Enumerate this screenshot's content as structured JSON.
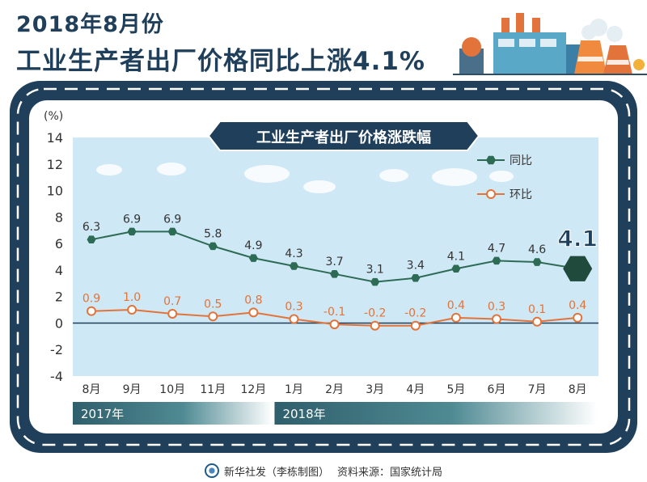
{
  "header": {
    "title_line1": "2018年8月份",
    "title_line2": "工业生产者出厂价格同比上涨4.1%"
  },
  "footer": {
    "agency": "新华社发（李栋制图）",
    "source": "资料来源：国家统计局"
  },
  "colors": {
    "navy": "#1f3f5a",
    "yoy": "#2e6b55",
    "mom": "#e2733a",
    "plot_bg": "#cfe8f5"
  },
  "chart_data": {
    "type": "line",
    "title": "工业生产者出厂价格涨跌幅",
    "ylabel": "(%)",
    "ylim": [
      -4,
      14
    ],
    "yticks": [
      "14",
      "12",
      "10",
      "8",
      "6",
      "4",
      "2",
      "0",
      "-2",
      "-4"
    ],
    "categories": [
      "8月",
      "9月",
      "10月",
      "11月",
      "12月",
      "1月",
      "2月",
      "3月",
      "4月",
      "5月",
      "6月",
      "7月",
      "8月"
    ],
    "year_groups": [
      {
        "label": "2017年",
        "months": 5
      },
      {
        "label": "2018年",
        "months": 8
      }
    ],
    "series": [
      {
        "name": "同比",
        "values": [
          6.3,
          6.9,
          6.9,
          5.8,
          4.9,
          4.3,
          3.7,
          3.1,
          3.4,
          4.1,
          4.7,
          4.6,
          4.1
        ],
        "labels": [
          "6.3",
          "6.9",
          "6.9",
          "5.8",
          "4.9",
          "4.3",
          "3.7",
          "3.1",
          "3.4",
          "4.1",
          "4.7",
          "4.6",
          "4.1"
        ]
      },
      {
        "name": "环比",
        "values": [
          0.9,
          1.0,
          0.7,
          0.5,
          0.8,
          0.3,
          -0.1,
          -0.2,
          -0.2,
          0.4,
          0.3,
          0.1,
          0.4
        ],
        "labels": [
          "0.9",
          "1.0",
          "0.7",
          "0.5",
          "0.8",
          "0.3",
          "-0.1",
          "-0.2",
          "-0.2",
          "0.4",
          "0.3",
          "0.1",
          "0.4"
        ]
      }
    ],
    "highlight": {
      "series": "同比",
      "index": 12,
      "label": "4.1"
    },
    "grid": false,
    "legend": "top-right"
  }
}
